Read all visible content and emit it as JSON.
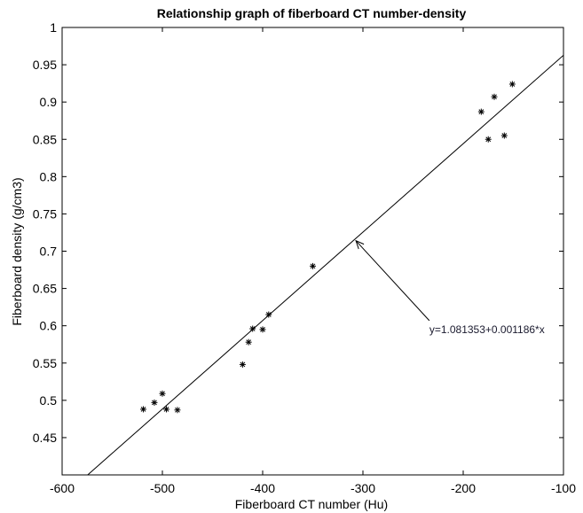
{
  "chart_data": {
    "type": "scatter",
    "title": "Relationship graph of fiberboard CT number-density",
    "xlabel": "Fiberboard CT number (Hu)",
    "ylabel": "Fiberboard density (g/cm3)",
    "xlim": [
      -600,
      -100
    ],
    "ylim": [
      0.4,
      1
    ],
    "x_ticks": [
      "-600",
      "-500",
      "-400",
      "-300",
      "-200",
      "-100"
    ],
    "y_ticks": [
      "0.45",
      "0.5",
      "0.55",
      "0.6",
      "0.65",
      "0.7",
      "0.75",
      "0.8",
      "0.85",
      "0.9",
      "0.95",
      "1"
    ],
    "grid": false,
    "marker": "*",
    "points": [
      {
        "x": -519,
        "y": 0.488
      },
      {
        "x": -508,
        "y": 0.497
      },
      {
        "x": -500,
        "y": 0.509
      },
      {
        "x": -496,
        "y": 0.488
      },
      {
        "x": -485,
        "y": 0.487
      },
      {
        "x": -420,
        "y": 0.548
      },
      {
        "x": -414,
        "y": 0.578
      },
      {
        "x": -410,
        "y": 0.596
      },
      {
        "x": -400,
        "y": 0.595
      },
      {
        "x": -394,
        "y": 0.615
      },
      {
        "x": -350,
        "y": 0.68
      },
      {
        "x": -182,
        "y": 0.887
      },
      {
        "x": -175,
        "y": 0.85
      },
      {
        "x": -169,
        "y": 0.907
      },
      {
        "x": -159,
        "y": 0.855
      },
      {
        "x": -151,
        "y": 0.924
      }
    ],
    "fit_line": {
      "intercept": 1.081353,
      "slope": 0.001186
    },
    "annotation": {
      "text": "y=1.081353+0.001186*x",
      "text_at": [
        -232,
        0.595
      ],
      "arrow_to": [
        -307,
        0.714
      ]
    }
  }
}
